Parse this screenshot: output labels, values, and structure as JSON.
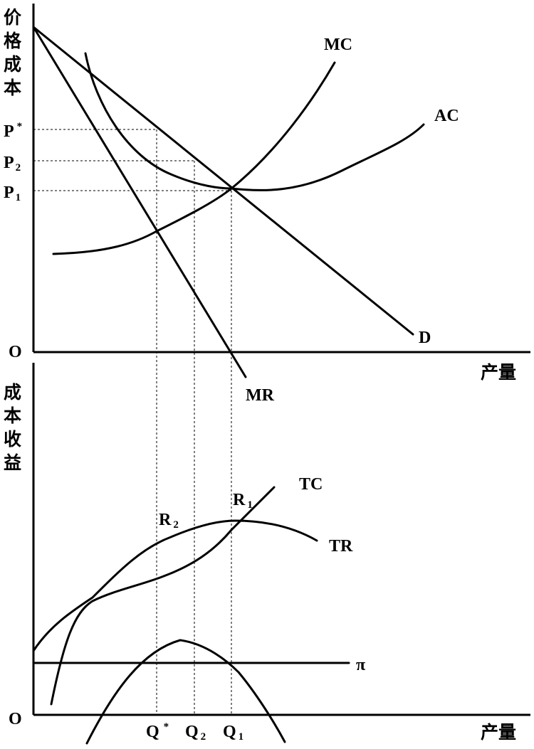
{
  "top_panel": {
    "y_axis_label": [
      "价",
      "格",
      "成",
      "本"
    ],
    "x_axis_label": "产量",
    "origin": "O",
    "price_levels": [
      {
        "main": "P",
        "sub": "*"
      },
      {
        "main": "P",
        "sub": "2"
      },
      {
        "main": "P",
        "sub": "1"
      }
    ],
    "curves": {
      "mc": "MC",
      "ac": "AC",
      "d": "D",
      "mr": "MR"
    }
  },
  "bottom_panel": {
    "y_axis_label": [
      "成",
      "本",
      "收",
      "益"
    ],
    "x_axis_label": "产量",
    "origin": "O",
    "quantity_levels": [
      {
        "main": "Q",
        "sub": "*"
      },
      {
        "main": "Q",
        "sub": "2"
      },
      {
        "main": "Q",
        "sub": "1"
      }
    ],
    "curves": {
      "tc": "TC",
      "tr": "TR",
      "pi": "π"
    },
    "points": {
      "r1": {
        "main": "R",
        "sub": "1"
      },
      "r2": {
        "main": "R",
        "sub": "2"
      }
    }
  }
}
